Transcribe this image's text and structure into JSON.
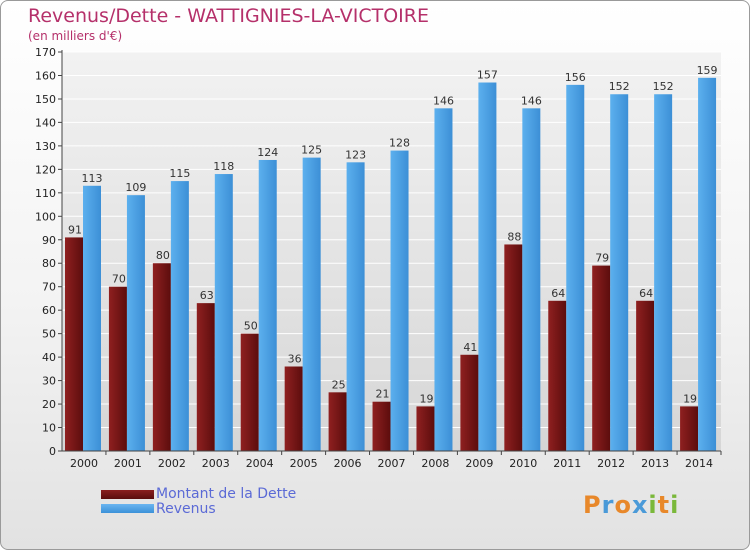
{
  "header": {
    "title": "Revenus/Dette - WATTIGNIES-LA-VICTOIRE",
    "subtitle": "(en milliers d'€)"
  },
  "legend": {
    "debt_label": "Montant de la Dette",
    "revenue_label": "Revenus"
  },
  "logo": {
    "letters": [
      "P",
      "r",
      "o",
      "x",
      "i",
      "t",
      "i"
    ],
    "colors": [
      "#e8882a",
      "#4a9ad8",
      "#e8882a",
      "#4a9ad8",
      "#7ab83a",
      "#e8882a",
      "#7ab83a"
    ]
  },
  "colors": {
    "debt": "#7a1515",
    "revenue": "#4da3e6",
    "axis_text": "#222222",
    "grid": "#ffffff"
  },
  "chart_data": {
    "type": "bar",
    "title": "Revenus/Dette - WATTIGNIES-LA-VICTOIRE",
    "subtitle": "(en milliers d'€)",
    "categories": [
      "2000",
      "2001",
      "2002",
      "2003",
      "2004",
      "2005",
      "2006",
      "2007",
      "2008",
      "2009",
      "2010",
      "2011",
      "2012",
      "2013",
      "2014"
    ],
    "series": [
      {
        "name": "Montant de la Dette",
        "values": [
          91,
          70,
          80,
          63,
          50,
          36,
          25,
          21,
          19,
          41,
          88,
          64,
          79,
          64,
          19
        ]
      },
      {
        "name": "Revenus",
        "values": [
          113,
          109,
          115,
          118,
          124,
          125,
          123,
          128,
          146,
          157,
          146,
          156,
          152,
          152,
          159
        ]
      }
    ],
    "yticks": [
      "0",
      "10",
      "20",
      "30",
      "40",
      "50",
      "60",
      "70",
      "80",
      "90",
      "100",
      "110",
      "120",
      "130",
      "140",
      "150",
      "160",
      "170"
    ],
    "ylim": [
      0,
      170
    ],
    "grid": true,
    "legend_position": "bottom-left"
  }
}
